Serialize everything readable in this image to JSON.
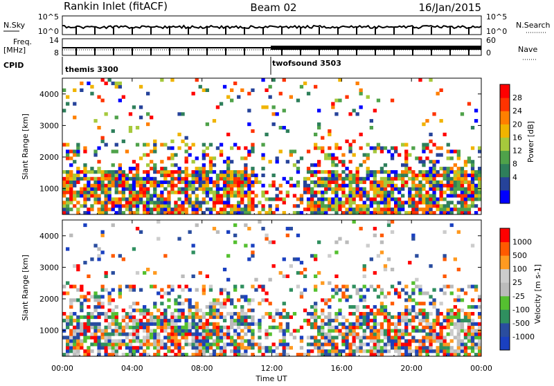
{
  "header": {
    "radar": "Rankin Inlet (fitACF)",
    "beam": "Beam 02",
    "date": "16/Jan/2015"
  },
  "noise_panel": {
    "left_label": "N.Sky",
    "right_label": "N.Search",
    "ticks_left": [
      "10^5",
      "10^0"
    ],
    "ticks_right": [
      "10^5",
      "10^0"
    ]
  },
  "freq_panel": {
    "left_label_1": "Freq.",
    "left_label_2": "[MHz]",
    "right_label": "Nave",
    "ticks_left": [
      "14",
      "8"
    ],
    "ticks_right": [
      "60",
      "0"
    ]
  },
  "cpid": {
    "label": "CPID",
    "segments": [
      {
        "name": "themis",
        "id": "3300",
        "start_hour": 0,
        "end_hour": 12
      },
      {
        "name": "twofsound",
        "id": "3503",
        "start_hour": 12,
        "end_hour": 24
      }
    ]
  },
  "colors": {
    "power": [
      "#0000ff",
      "#26439a",
      "#2e7f5b",
      "#4fa24a",
      "#a6c93c",
      "#f0b400",
      "#ff7f00",
      "#ff3300",
      "#ff0000"
    ],
    "velocity": [
      "#ff0000",
      "#ff5a00",
      "#ff9a20",
      "#cccccc",
      "#bbbbbb",
      "#55c030",
      "#2f8f5f",
      "#2a4d9f",
      "#1a40c0"
    ]
  },
  "chart_data": [
    {
      "type": "heatmap",
      "name": "power",
      "ylabel": "Slant Range [km]",
      "xlabel": "Time UT",
      "xlim": [
        0,
        24
      ],
      "ylim": [
        180,
        4500
      ],
      "x_ticks": [
        "00:00",
        "04:00",
        "08:00",
        "12:00",
        "16:00",
        "20:00",
        "00:00"
      ],
      "x_tick_hours": [
        0,
        4,
        8,
        12,
        16,
        20,
        24
      ],
      "y_ticks": [
        1000,
        2000,
        3000,
        4000
      ],
      "colorbar": {
        "label": "Power [dB]",
        "tick_labels": [
          "28",
          "24",
          "20",
          "16",
          "12",
          "8",
          "4"
        ],
        "levels": [
          0,
          4,
          8,
          12,
          16,
          20,
          24,
          28,
          32
        ]
      }
    },
    {
      "type": "heatmap",
      "name": "velocity",
      "ylabel": "Slant Range [km]",
      "xlabel": "Time UT",
      "xlim": [
        0,
        24
      ],
      "ylim": [
        180,
        4500
      ],
      "x_ticks": [
        "00:00",
        "04:00",
        "08:00",
        "12:00",
        "16:00",
        "20:00",
        "00:00"
      ],
      "x_tick_hours": [
        0,
        4,
        8,
        12,
        16,
        20,
        24
      ],
      "y_ticks": [
        1000,
        2000,
        3000,
        4000
      ],
      "colorbar": {
        "label": "Velocity [m s-1]",
        "tick_labels": [
          "1000",
          "500",
          "100",
          "25",
          "-25",
          "-100",
          "-500",
          "-1000"
        ]
      }
    }
  ]
}
